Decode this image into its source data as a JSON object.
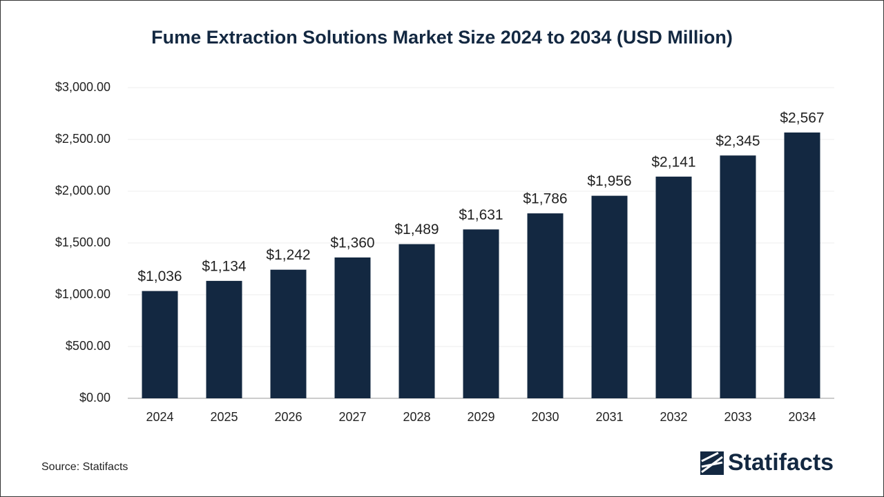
{
  "chart_data": {
    "type": "bar",
    "title": "Fume Extraction Solutions Market Size 2024 to 2034 (USD Million)",
    "categories": [
      "2024",
      "2025",
      "2026",
      "2027",
      "2028",
      "2029",
      "2030",
      "2031",
      "2032",
      "2033",
      "2034"
    ],
    "values": [
      1036,
      1134,
      1242,
      1360,
      1489,
      1631,
      1786,
      1956,
      2141,
      2345,
      2567
    ],
    "value_labels": [
      "$1,036",
      "$1,134",
      "$1,242",
      "$1,360",
      "$1,489",
      "$1,631",
      "$1,786",
      "$1,956",
      "$2,141",
      "$2,345",
      "$2,567"
    ],
    "color": "#132841",
    "ylim": [
      0,
      3000
    ],
    "yticks": [
      {
        "value": 0,
        "label": "$0.00"
      },
      {
        "value": 500,
        "label": "$500.00"
      },
      {
        "value": 1000,
        "label": "$1,000.00"
      },
      {
        "value": 1500,
        "label": "$1,500.00"
      },
      {
        "value": 2000,
        "label": "$2,000.00"
      },
      {
        "value": 2500,
        "label": "$2,500.00"
      },
      {
        "value": 3000,
        "label": "$3,000.00"
      }
    ],
    "grid": true,
    "source": "Source: Statifacts",
    "logo": "Statifacts"
  }
}
